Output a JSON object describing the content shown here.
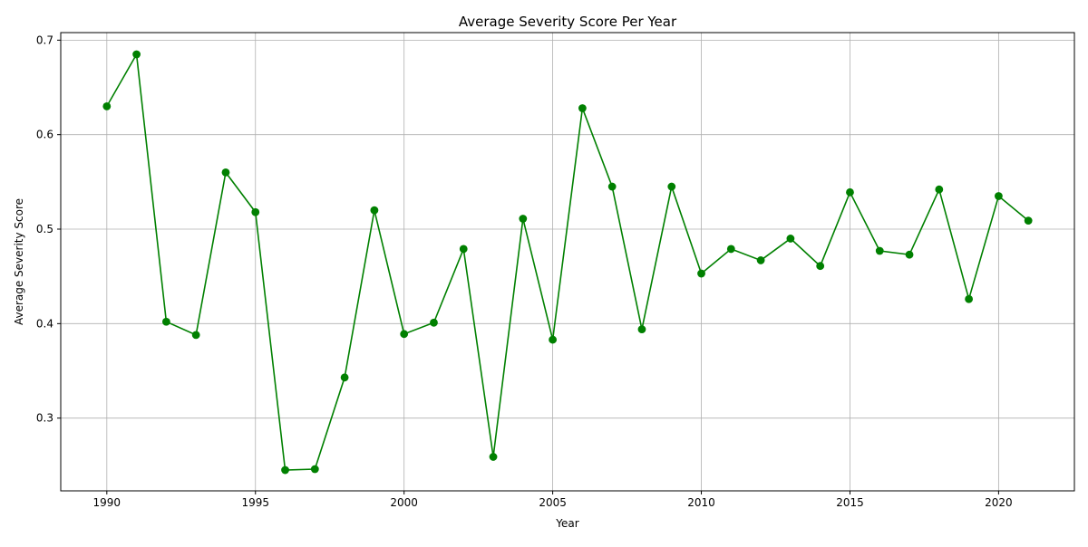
{
  "chart_data": {
    "type": "line",
    "title": "Average Severity Score Per Year",
    "xlabel": "Year",
    "ylabel": "Average Severity Score",
    "xlim": [
      1988.45,
      2022.55
    ],
    "ylim": [
      0.223,
      0.708
    ],
    "x_ticks": [
      1990,
      1995,
      2000,
      2005,
      2010,
      2015,
      2020
    ],
    "y_ticks": [
      0.3,
      0.4,
      0.5,
      0.6,
      0.7
    ],
    "x_tick_labels": [
      "1990",
      "1995",
      "2000",
      "2005",
      "2010",
      "2015",
      "2020"
    ],
    "y_tick_labels": [
      "0.3",
      "0.4",
      "0.5",
      "0.6",
      "0.7"
    ],
    "grid": true,
    "color": "#008000",
    "marker": "circle",
    "x": [
      1990,
      1991,
      1992,
      1993,
      1994,
      1995,
      1996,
      1997,
      1998,
      1999,
      2000,
      2001,
      2002,
      2003,
      2004,
      2005,
      2006,
      2007,
      2008,
      2009,
      2010,
      2011,
      2012,
      2013,
      2014,
      2015,
      2016,
      2017,
      2018,
      2019,
      2020,
      2021
    ],
    "values": [
      0.63,
      0.685,
      0.402,
      0.388,
      0.56,
      0.518,
      0.245,
      0.246,
      0.343,
      0.52,
      0.389,
      0.401,
      0.479,
      0.259,
      0.511,
      0.383,
      0.628,
      0.545,
      0.394,
      0.545,
      0.453,
      0.479,
      0.467,
      0.49,
      0.461,
      0.539,
      0.477,
      0.473,
      0.542,
      0.426,
      0.535,
      0.509
    ]
  }
}
